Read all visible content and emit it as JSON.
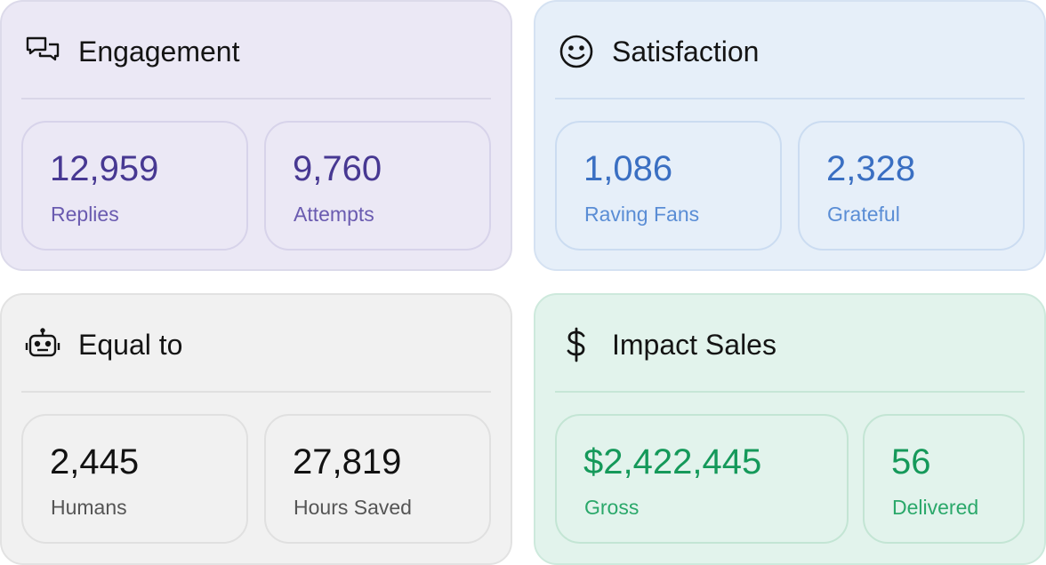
{
  "cards": [
    {
      "title": "Engagement",
      "stats": [
        {
          "value": "12,959",
          "label": "Replies"
        },
        {
          "value": "9,760",
          "label": "Attempts"
        }
      ]
    },
    {
      "title": "Satisfaction",
      "stats": [
        {
          "value": "1,086",
          "label": "Raving Fans"
        },
        {
          "value": "2,328",
          "label": "Grateful"
        }
      ]
    },
    {
      "title": "Equal to",
      "stats": [
        {
          "value": "2,445",
          "label": "Humans"
        },
        {
          "value": "27,819",
          "label": "Hours Saved"
        }
      ]
    },
    {
      "title": "Impact Sales",
      "stats": [
        {
          "value": "$2,422,445",
          "label": "Gross"
        },
        {
          "value": "56",
          "label": "Delivered"
        }
      ]
    }
  ]
}
